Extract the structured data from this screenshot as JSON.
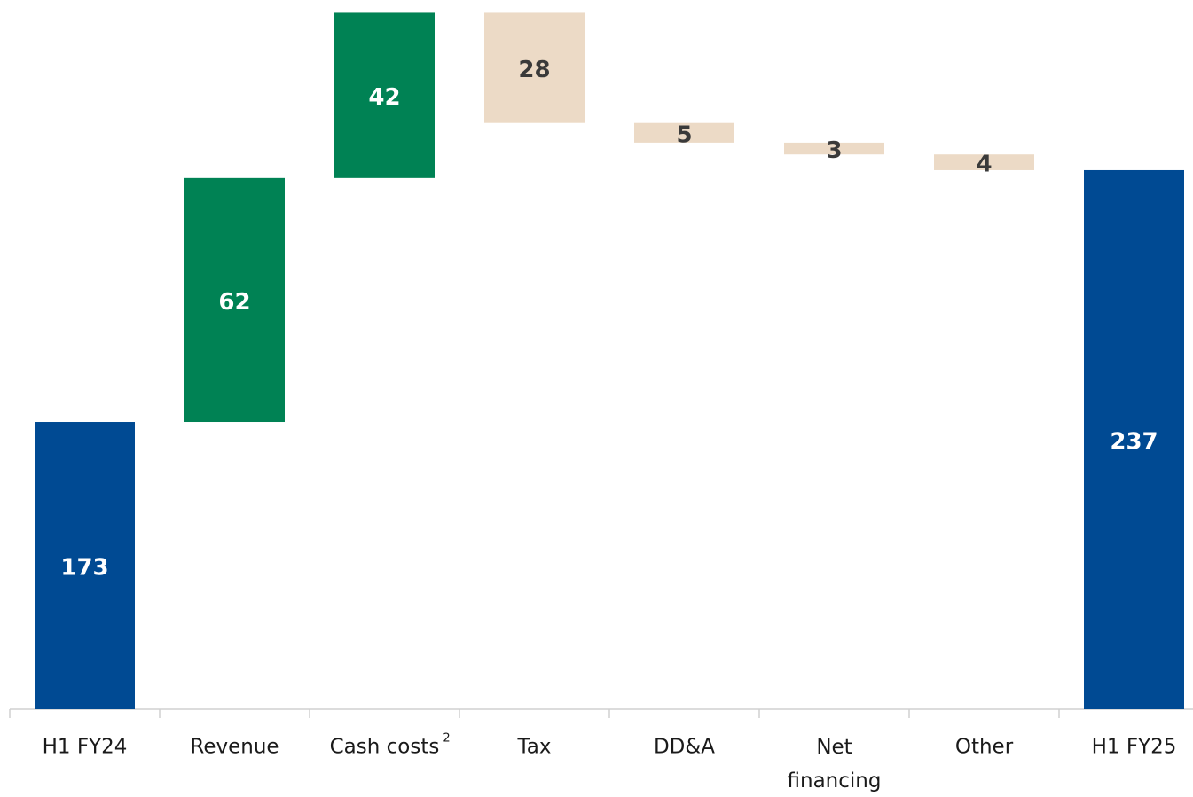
{
  "chart_data": {
    "type": "waterfall",
    "categories": [
      "H1 FY24",
      "Revenue",
      "Cash costs",
      "Tax",
      "DD&A",
      "Net financing",
      "Other",
      "H1 FY25"
    ],
    "category_notes": [
      null,
      null,
      "2",
      null,
      null,
      null,
      null,
      null
    ],
    "measure": [
      "absolute",
      "relative",
      "relative",
      "relative",
      "relative",
      "relative",
      "relative",
      "absolute"
    ],
    "values": [
      173,
      62,
      42,
      -28,
      -5,
      -3,
      -4,
      237
    ],
    "value_labels": [
      "173",
      "62",
      "42",
      "28",
      "5",
      "3",
      "4",
      "237"
    ],
    "colors": {
      "total": "#004a93",
      "increase": "#008254",
      "decrease": "#ecdac6"
    },
    "label_colors": {
      "total": "#ffffff",
      "increase": "#ffffff",
      "decrease": "#3a3a3a"
    },
    "ylim": [
      100,
      278
    ]
  }
}
